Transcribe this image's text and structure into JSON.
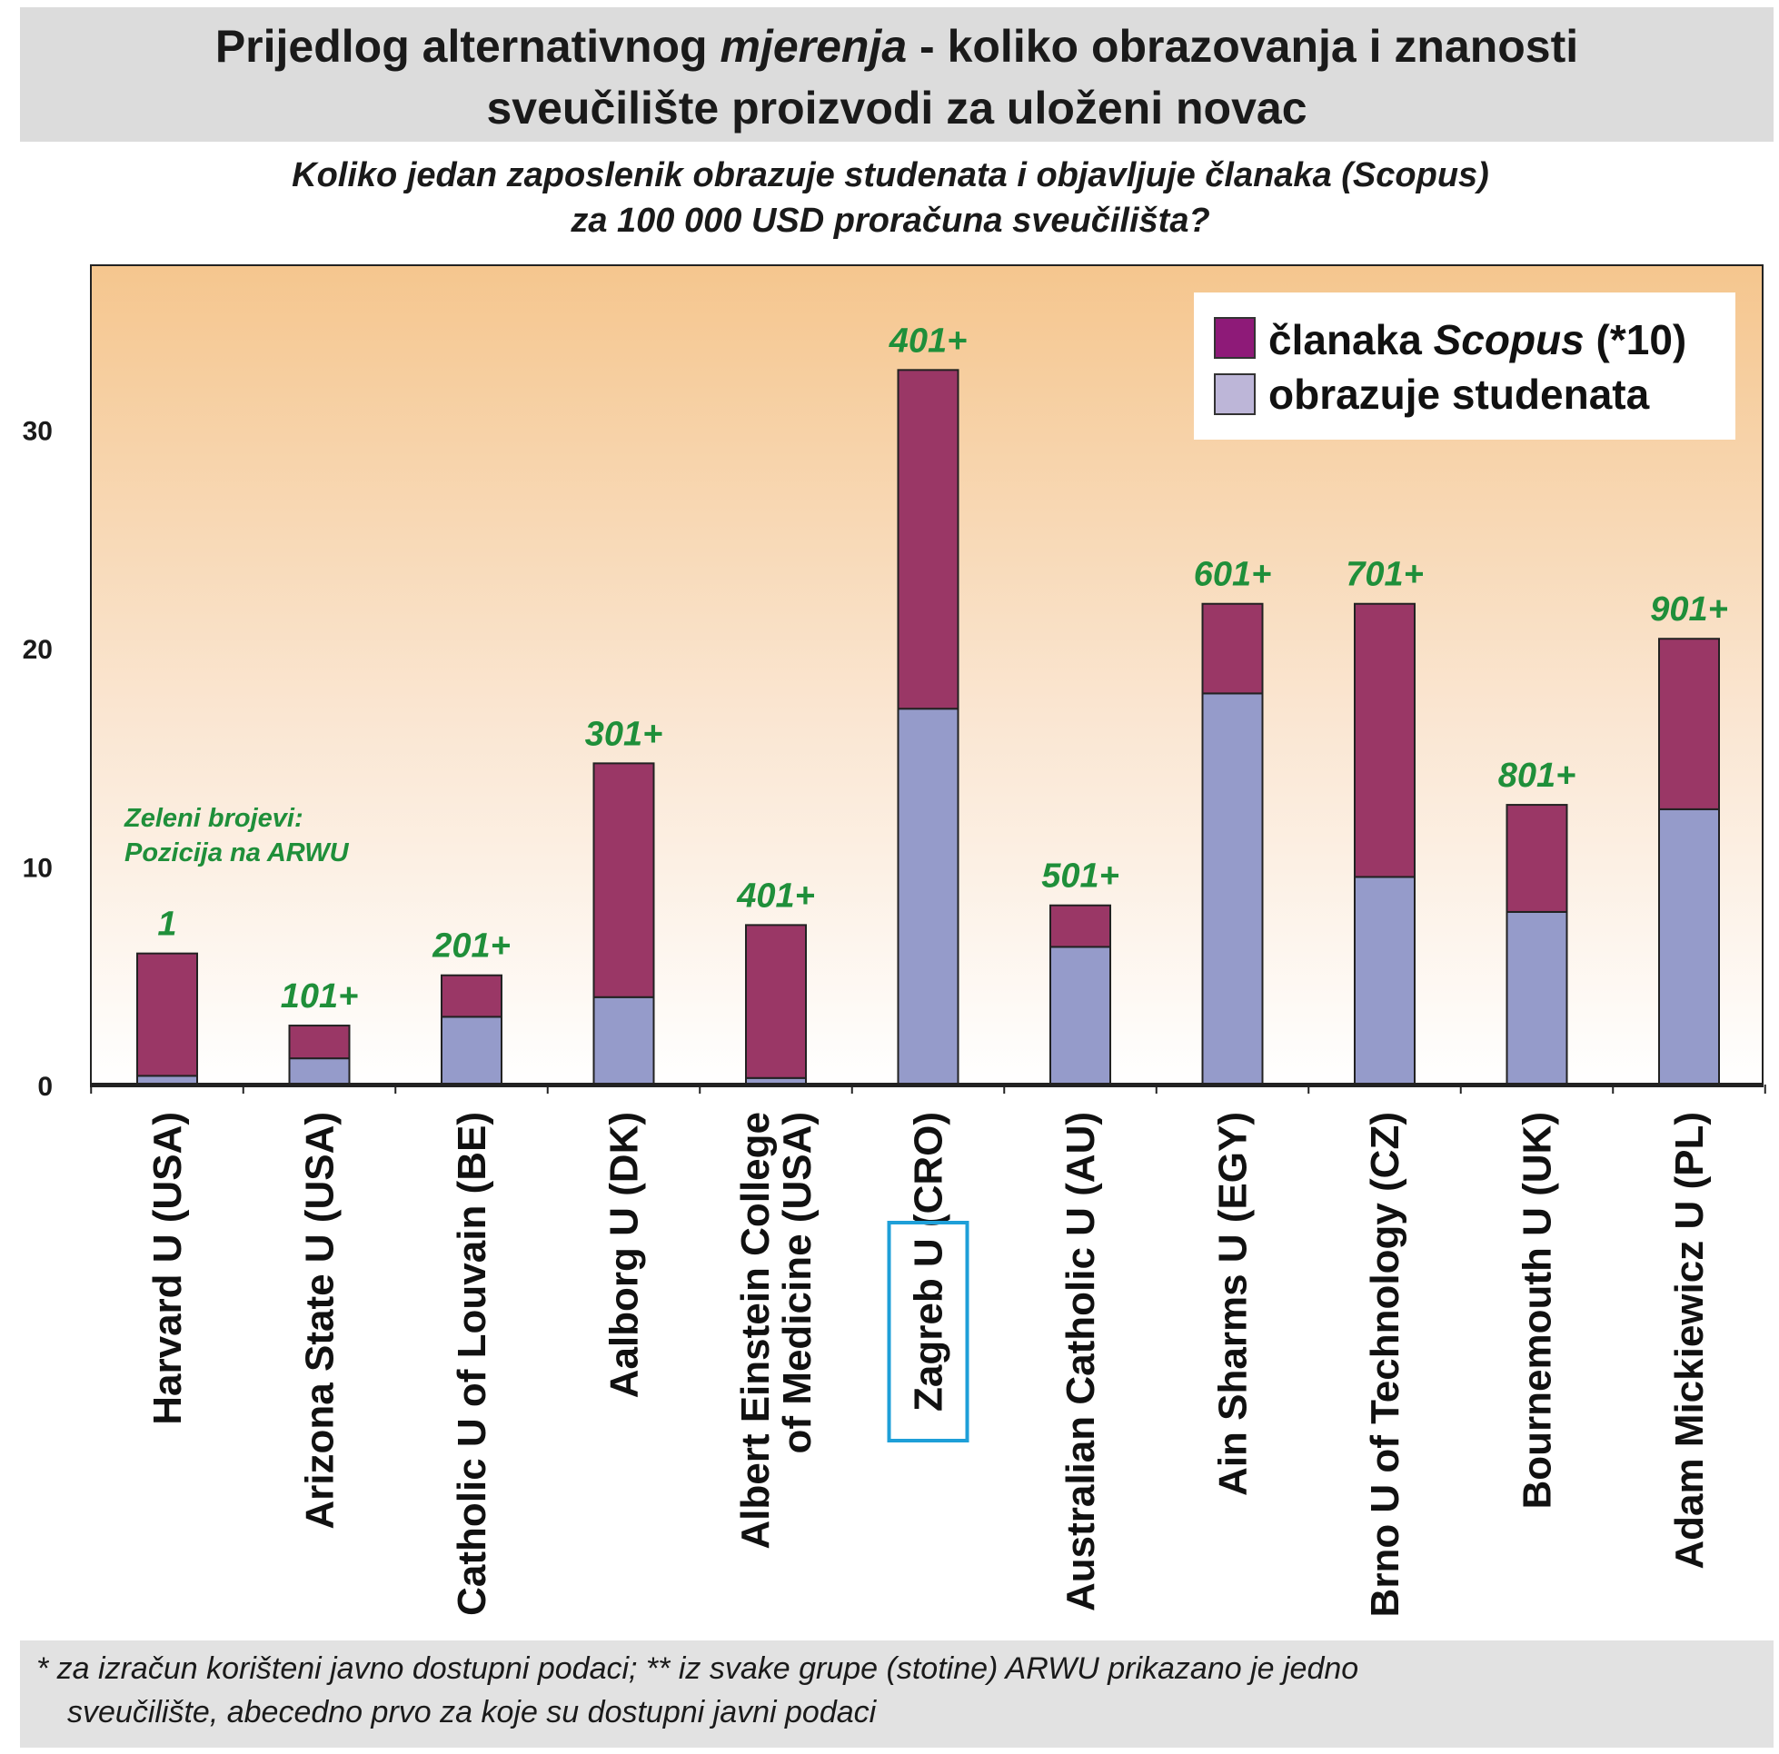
{
  "header": {
    "title_line1_part1": "Prijedlog alternativnog ",
    "title_line1_italic": "mjerenja",
    "title_line1_part2": " - koliko obrazovanja i znanosti",
    "title_line2": "sveučilište proizvodi za uloženi novac",
    "subtitle_line1": "Koliko jedan zaposlenik obrazuje studenata i objavljuje  članaka (Scopus)",
    "subtitle_line2": "za 100 000 USD proračuna sveučilišta?"
  },
  "footer": {
    "line1": "* za izračun korišteni javno dostupni podaci; ** iz svake grupe (stotine) ARWU prikazano je jedno",
    "line2": "sveučilište, abecedno prvo za koje su dostupni javni podaci"
  },
  "chart_data": {
    "type": "bar",
    "stacked": true,
    "categories": [
      [
        "Harvard U (USA)"
      ],
      [
        "Arizona State U (USA)"
      ],
      [
        "Catholic U of Louvain (BE)"
      ],
      [
        "Aalborg U (DK)"
      ],
      [
        "Albert Einstein College",
        "of Medicine (USA)"
      ],
      [
        "Zagreb U (CRO)"
      ],
      [
        "Australian Catholic U (AU)"
      ],
      [
        "Ain Sharms U (EGY)"
      ],
      [
        "Brno U of Technology (CZ)"
      ],
      [
        "Bournemouth U (UK)"
      ],
      [
        "Adam Mickiewicz U (PL)"
      ]
    ],
    "highlighted_category": "Zagreb U (CRO)",
    "series": [
      {
        "name": "obrazuje studenata",
        "color": "#959bca",
        "values": [
          0.4,
          1.2,
          3.1,
          4.0,
          0.3,
          17.2,
          6.3,
          17.9,
          9.5,
          7.9,
          12.6
        ]
      },
      {
        "name_prefix": "članaka ",
        "name_italic": "Scopus",
        "name_suffix": " (*10)",
        "color": "#9a3766",
        "values": [
          5.6,
          1.5,
          1.9,
          10.7,
          7.0,
          15.5,
          1.9,
          4.1,
          12.5,
          4.9,
          7.8
        ]
      }
    ],
    "totals": [
      6.0,
      2.7,
      5.0,
      14.7,
      7.3,
      32.7,
      8.2,
      22.0,
      22.0,
      12.8,
      20.4
    ],
    "arwu_rank_labels": [
      "1",
      "101+",
      "201+",
      "301+",
      "401+",
      "401+",
      "501+",
      "601+",
      "701+",
      "801+",
      "901+"
    ],
    "annotation": [
      "Zeleni brojevi:",
      "Pozicija na ARWU"
    ],
    "yticks": [
      0,
      10,
      20,
      30
    ],
    "ylim": [
      0,
      37
    ],
    "xlabel": "",
    "ylabel": "",
    "grid": false,
    "legend_position": "top-right",
    "legend_swatch_colors": [
      "#8e1a78",
      "#bdb6d8"
    ],
    "plot_background": "orange-to-white vertical gradient",
    "rank_label_color": "#1f8f3a",
    "highlight_color": "#1e9fd8"
  }
}
